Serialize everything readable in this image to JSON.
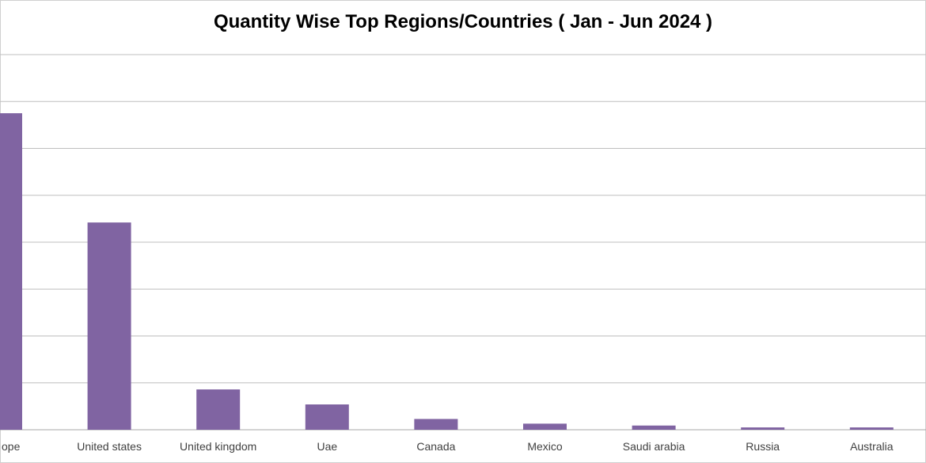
{
  "chart_data": {
    "type": "bar",
    "title": "Quantity Wise Top Regions/Countries ( Jan - Jun 2024 )",
    "categories": [
      "Europe",
      "United states",
      "United kingdom",
      "Uae",
      "Canada",
      "Mexico",
      "Saudi arabia",
      "Russia",
      "Australia"
    ],
    "category_labels_visible": [
      "ope",
      "United states",
      "United kingdom",
      "Uae",
      "Canada",
      "Mexico",
      "Saudi arabia",
      "Russia",
      "Australia"
    ],
    "values": [
      6.75,
      4.42,
      0.86,
      0.54,
      0.23,
      0.13,
      0.09,
      0.05,
      0.05
    ],
    "ylim": [
      0,
      8
    ],
    "gridlines": true,
    "bar_color": "#8064a2",
    "grid_color": "#bfbfbf"
  }
}
